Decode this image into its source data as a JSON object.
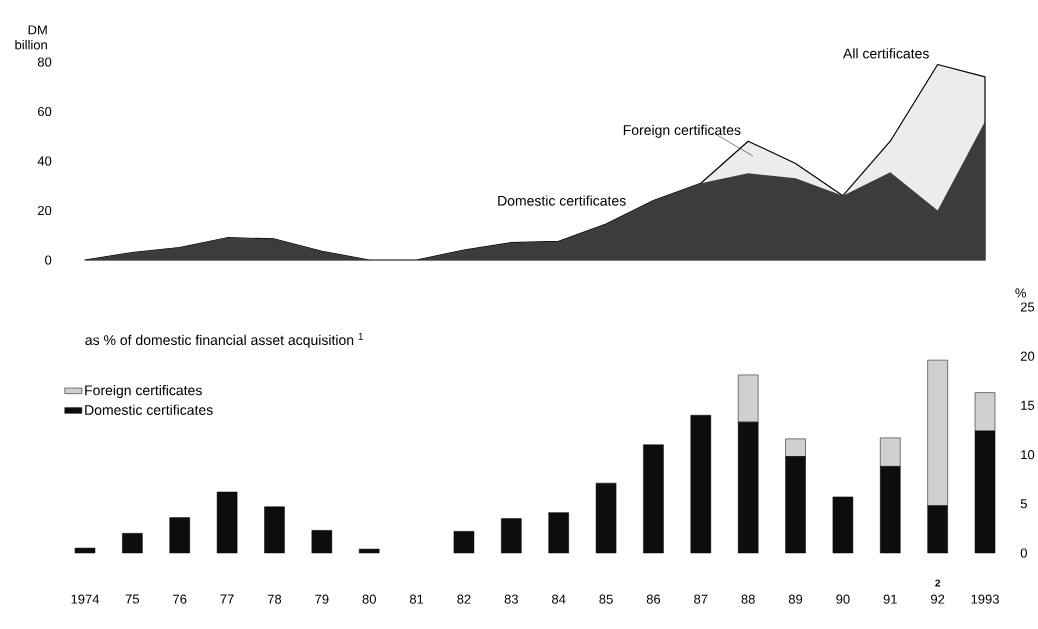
{
  "chart_data": [
    {
      "type": "area",
      "ylabel": "DM billion",
      "categories": [
        "1974",
        "75",
        "76",
        "77",
        "78",
        "79",
        "80",
        "81",
        "82",
        "83",
        "84",
        "85",
        "86",
        "87",
        "88",
        "89",
        "90",
        "91",
        "92",
        "1993"
      ],
      "series": [
        {
          "name": "All certificates",
          "color": "#ececec",
          "values": [
            0,
            3,
            5,
            9,
            8.5,
            3.5,
            0,
            0,
            4,
            7,
            7.5,
            14.5,
            24,
            31,
            48,
            39,
            26,
            48,
            79,
            74
          ]
        },
        {
          "name": "Domestic certificates",
          "color": "#3c3c3c",
          "values": [
            0,
            3,
            5,
            9,
            8.5,
            3.5,
            0,
            0,
            4,
            7,
            7.5,
            14.5,
            24,
            31,
            35,
            33,
            26,
            35.5,
            20,
            56
          ]
        }
      ],
      "ylim": [
        0,
        80
      ],
      "yticks": [
        0,
        20,
        40,
        60,
        80
      ],
      "tick_labels": "y",
      "annotations": [
        "Foreign certificates"
      ]
    },
    {
      "type": "bar",
      "stacked": true,
      "title": "as % of domestic financial asset acquisition $^{1}$",
      "ylabel": "%",
      "categories": [
        "1974",
        "75",
        "76",
        "77",
        "78",
        "79",
        "80",
        "81",
        "82",
        "83",
        "84",
        "85",
        "86",
        "87",
        "88",
        "89",
        "90",
        "91",
        "92",
        "1993"
      ],
      "series": [
        {
          "name": "Domestic certificates",
          "color": "#0d0d0d",
          "values": [
            0.5,
            2,
            3.6,
            6.2,
            4.7,
            2.3,
            0.4,
            0,
            2.2,
            3.5,
            4.1,
            7.1,
            11,
            14,
            13.3,
            9.8,
            5.7,
            8.8,
            4.8,
            12.4
          ]
        },
        {
          "name": "Foreign certificates",
          "color": "#d0d0d0",
          "values": [
            0,
            0,
            0,
            0,
            0,
            0,
            0,
            0,
            0,
            0,
            0,
            0,
            0,
            0,
            4.8,
            1.8,
            0,
            2.9,
            14.8,
            3.9
          ]
        }
      ],
      "ylim": [
        0,
        25
      ],
      "yticks": [
        0,
        5,
        10,
        15,
        20,
        25
      ],
      "legend": "top left",
      "annotations": [
        "2"
      ]
    }
  ]
}
